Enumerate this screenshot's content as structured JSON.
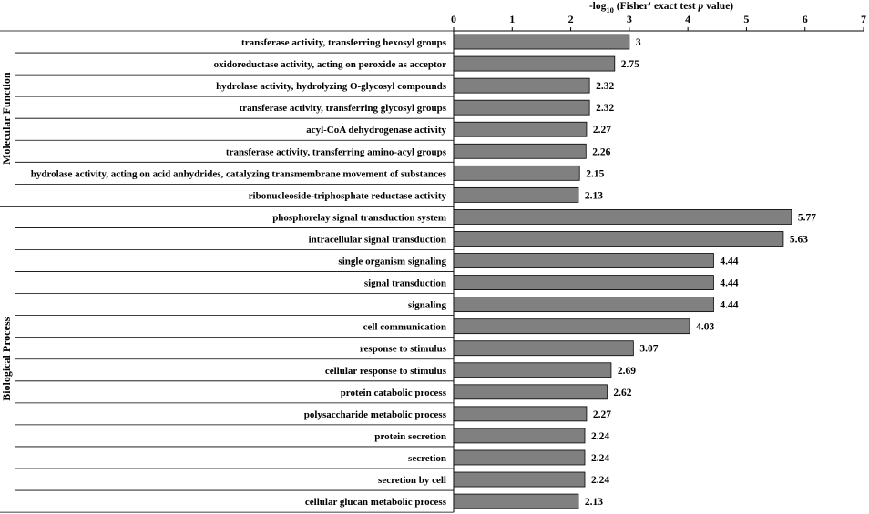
{
  "chart_data": {
    "type": "bar",
    "orientation": "horizontal",
    "axis_title": {
      "prefix": "-log",
      "subscript": "10",
      "main": " (Fisher' exact test ",
      "italic": "p",
      "suffix": " value)"
    },
    "x_axis_position": "top",
    "xlim": [
      0,
      7
    ],
    "xticks": [
      0,
      1,
      2,
      3,
      4,
      5,
      6,
      7
    ],
    "groups": [
      {
        "name": "Molecular Function",
        "categories": [
          "transferase activity, transferring hexosyl groups",
          "oxidoreductase activity, acting on peroxide as acceptor",
          "hydrolase activity, hydrolyzing O-glycosyl compounds",
          "transferase activity, transferring glycosyl groups",
          "acyl-CoA dehydrogenase activity",
          "transferase activity, transferring amino-acyl groups",
          "hydrolase activity, acting on acid anhydrides, catalyzing transmembrane movement of substances",
          "ribonucleoside-triphosphate reductase activity"
        ],
        "values": [
          3,
          2.75,
          2.32,
          2.32,
          2.27,
          2.26,
          2.15,
          2.13
        ],
        "value_labels": [
          "3",
          "2.75",
          "2.32",
          "2.32",
          "2.27",
          "2.26",
          "2.15",
          "2.13"
        ]
      },
      {
        "name": "Biological Process",
        "categories": [
          "phosphorelay signal transduction system",
          "intracellular signal transduction",
          "single organism signaling",
          "signal transduction",
          "signaling",
          "cell communication",
          "response to stimulus",
          "cellular response to stimulus",
          "protein catabolic process",
          "polysaccharide metabolic process",
          "protein secretion",
          "secretion",
          "secretion by cell",
          "cellular glucan metabolic process"
        ],
        "values": [
          5.77,
          5.63,
          4.44,
          4.44,
          4.44,
          4.03,
          3.07,
          2.69,
          2.62,
          2.27,
          2.24,
          2.24,
          2.24,
          2.13
        ],
        "value_labels": [
          "5.77",
          "5.63",
          "4.44",
          "4.44",
          "4.44",
          "4.03",
          "3.07",
          "2.69",
          "2.62",
          "2.27",
          "2.24",
          "2.24",
          "2.24",
          "2.13"
        ]
      }
    ],
    "colors": {
      "bar": "#808080",
      "bar_edge": "#000000"
    },
    "grid": false,
    "legend": "none"
  }
}
